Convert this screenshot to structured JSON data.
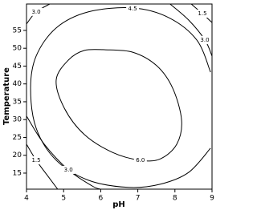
{
  "chart_data": {
    "type": "contour",
    "x_label": "pH",
    "y_label": "Temperature",
    "xlim": [
      4,
      9
    ],
    "ylim": [
      10.5,
      62.4
    ],
    "xticks": [
      4,
      5,
      6,
      7,
      8,
      9
    ],
    "yticks": [
      15,
      20,
      25,
      30,
      35,
      40,
      45,
      50,
      55
    ],
    "color": "#000000",
    "contours": [
      {
        "level": {
          "value": 1.5,
          "label": "1.5"
        },
        "x": [
          8.44,
          8.74,
          9
        ],
        "y": [
          62.4,
          59.7,
          57.2
        ]
      },
      {
        "level": {
          "value": 3,
          "label": "3.0"
        },
        "x": [
          4,
          4.26,
          4.63
        ],
        "y": [
          56.8,
          60.2,
          62.4
        ]
      },
      {
        "level": {
          "value": 3,
          "label": "3.0"
        },
        "x": [
          7.87,
          8.37,
          8.81,
          9
        ],
        "y": [
          62.4,
          57.9,
          52.3,
          47.8
        ]
      },
      {
        "level": {
          "value": 4.5,
          "label": "4.5"
        },
        "x": [
          8.96,
          8.37,
          7.61,
          6.75,
          5.67,
          4.8,
          4.26,
          4.11,
          4.26,
          4.8,
          5.67,
          6.86,
          7.83,
          8.59,
          8.96
        ],
        "y": [
          22.0,
          15.2,
          11.9,
          11.0,
          13.0,
          18.6,
          27.6,
          38.8,
          47.8,
          55.7,
          60.2,
          61.3,
          58.6,
          52.3,
          43.3
        ]
      },
      {
        "level": {
          "value": 6,
          "label": "6.0"
        },
        "x": [
          6.1,
          6.86,
          7.51,
          7.94,
          8.18,
          8.05,
          7.61,
          7.07,
          6.32,
          5.56,
          5.02,
          4.8,
          5.13,
          5.56,
          6.1
        ],
        "y": [
          49.6,
          48.9,
          45.1,
          38.8,
          29.8,
          23.1,
          19.0,
          18.6,
          20.8,
          25.8,
          33.2,
          41.1,
          46.7,
          49.4,
          49.6
        ]
      },
      {
        "level": {
          "value": 3,
          "label": "3.0"
        },
        "x": [
          4,
          4.48,
          5.13,
          5.77,
          5.99
        ],
        "y": [
          31.0,
          23.1,
          15.9,
          11.4,
          10.5
        ]
      },
      {
        "level": {
          "value": 1.5,
          "label": "1.5"
        },
        "x": [
          4,
          4.26,
          4.58,
          4.84
        ],
        "y": [
          23.1,
          18.6,
          14.1,
          10.5
        ]
      }
    ]
  }
}
